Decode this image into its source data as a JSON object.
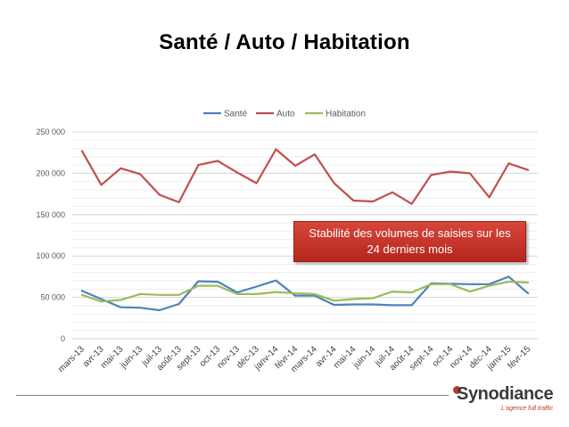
{
  "page": {
    "title": "Santé / Auto / Habitation"
  },
  "chart_data": {
    "type": "line",
    "title": "",
    "xlabel": "",
    "ylabel": "",
    "ylim": [
      0,
      250000
    ],
    "yticks": [
      0,
      50000,
      100000,
      150000,
      200000,
      250000
    ],
    "ytick_labels": [
      "0",
      "50 000",
      "100 000",
      "150 000",
      "200 000",
      "250 000"
    ],
    "grid": true,
    "legend_position": "top",
    "categories": [
      "mars-13",
      "avr-13",
      "mai-13",
      "juin-13",
      "juil-13",
      "août-13",
      "sept-13",
      "oct-13",
      "nov-13",
      "déc-13",
      "janv-14",
      "févr-14",
      "mars-14",
      "avr-14",
      "mai-14",
      "juin-14",
      "juil-14",
      "août-14",
      "sept-14",
      "oct-14",
      "nov-14",
      "déc-14",
      "janv-15",
      "févr-15"
    ],
    "series": [
      {
        "name": "Santé",
        "color": "#4f81bd",
        "values": [
          58000,
          48000,
          38000,
          37500,
          34500,
          42000,
          69500,
          69000,
          56000,
          63000,
          70500,
          52000,
          52000,
          41000,
          41500,
          41500,
          40500,
          40500,
          67000,
          66500,
          66000,
          66000,
          75000,
          55000
        ]
      },
      {
        "name": "Auto",
        "color": "#c0504d",
        "values": [
          227000,
          186000,
          206000,
          199000,
          174000,
          165000,
          210000,
          215000,
          201000,
          188000,
          229000,
          209000,
          223000,
          188000,
          167000,
          166000,
          177000,
          163000,
          198000,
          202000,
          200000,
          171000,
          212000,
          204000
        ]
      },
      {
        "name": "Habitation",
        "color": "#9bbb59",
        "values": [
          53000,
          45000,
          47000,
          54000,
          53000,
          53000,
          64000,
          64000,
          54000,
          54000,
          56500,
          55000,
          54000,
          46000,
          48000,
          49000,
          57000,
          56000,
          66000,
          66000,
          57000,
          64000,
          69000,
          68000
        ]
      }
    ],
    "annotation": "Stabilité des volumes de saisies sur les 24 derniers mois"
  },
  "brand": {
    "name": "Synodiance",
    "tagline": "L'agence full traffic",
    "icon": "synodiance-logo-icon",
    "accent_color": "#c0392b"
  }
}
